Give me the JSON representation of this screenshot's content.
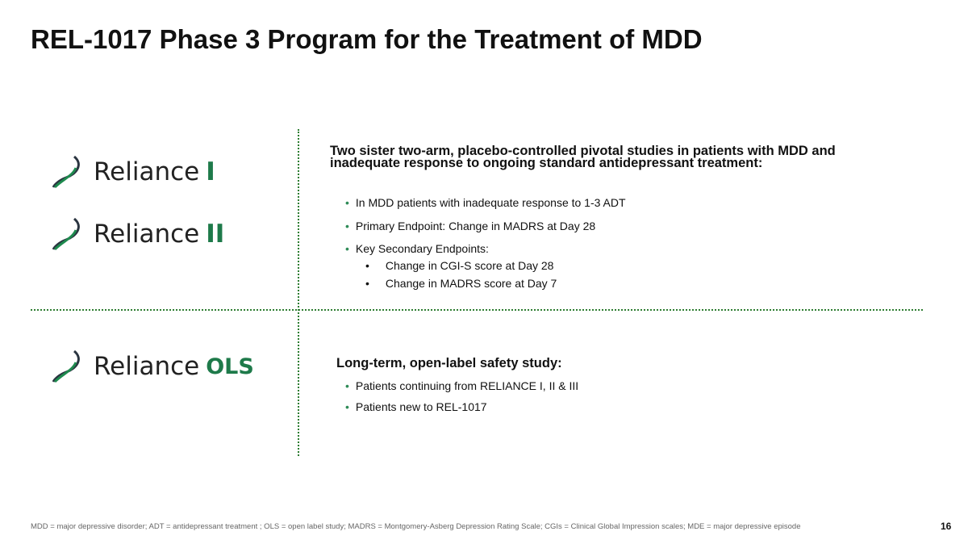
{
  "title": "REL-1017 Phase 3 Program for the Treatment of MDD",
  "logos": [
    {
      "word": "Reliance",
      "suffix": "I"
    },
    {
      "word": "Reliance",
      "suffix": "II"
    },
    {
      "word": "Reliance",
      "suffix": "OLS"
    }
  ],
  "pivotal": {
    "heading": "Two sister two-arm, placebo-controlled pivotal studies in patients with MDD and inadequate response to ongoing standard antidepressant treatment:",
    "bullets": [
      "In MDD patients with inadequate response to 1-3 ADT",
      "Primary Endpoint: Change in MADRS at Day 28",
      "Key Secondary Endpoints:"
    ],
    "sub_bullets": [
      "Change in CGI-S score at Day 28",
      "Change in MADRS score at Day 7"
    ]
  },
  "ols": {
    "heading": "Long-term, open-label safety study:",
    "bullets": [
      "Patients continuing from RELIANCE I, II & III",
      "Patients new to REL-1017"
    ]
  },
  "footnote": "MDD = major depressive disorder; ADT = antidepressant treatment ; OLS = open label study; MADRS = Montgomery-Asberg Depression Rating Scale; CGIs = Clinical Global Impression scales; MDE = major depressive episode",
  "page_number": "16",
  "colors": {
    "accent": "#1e7a4a",
    "divider": "#2e7d32"
  }
}
